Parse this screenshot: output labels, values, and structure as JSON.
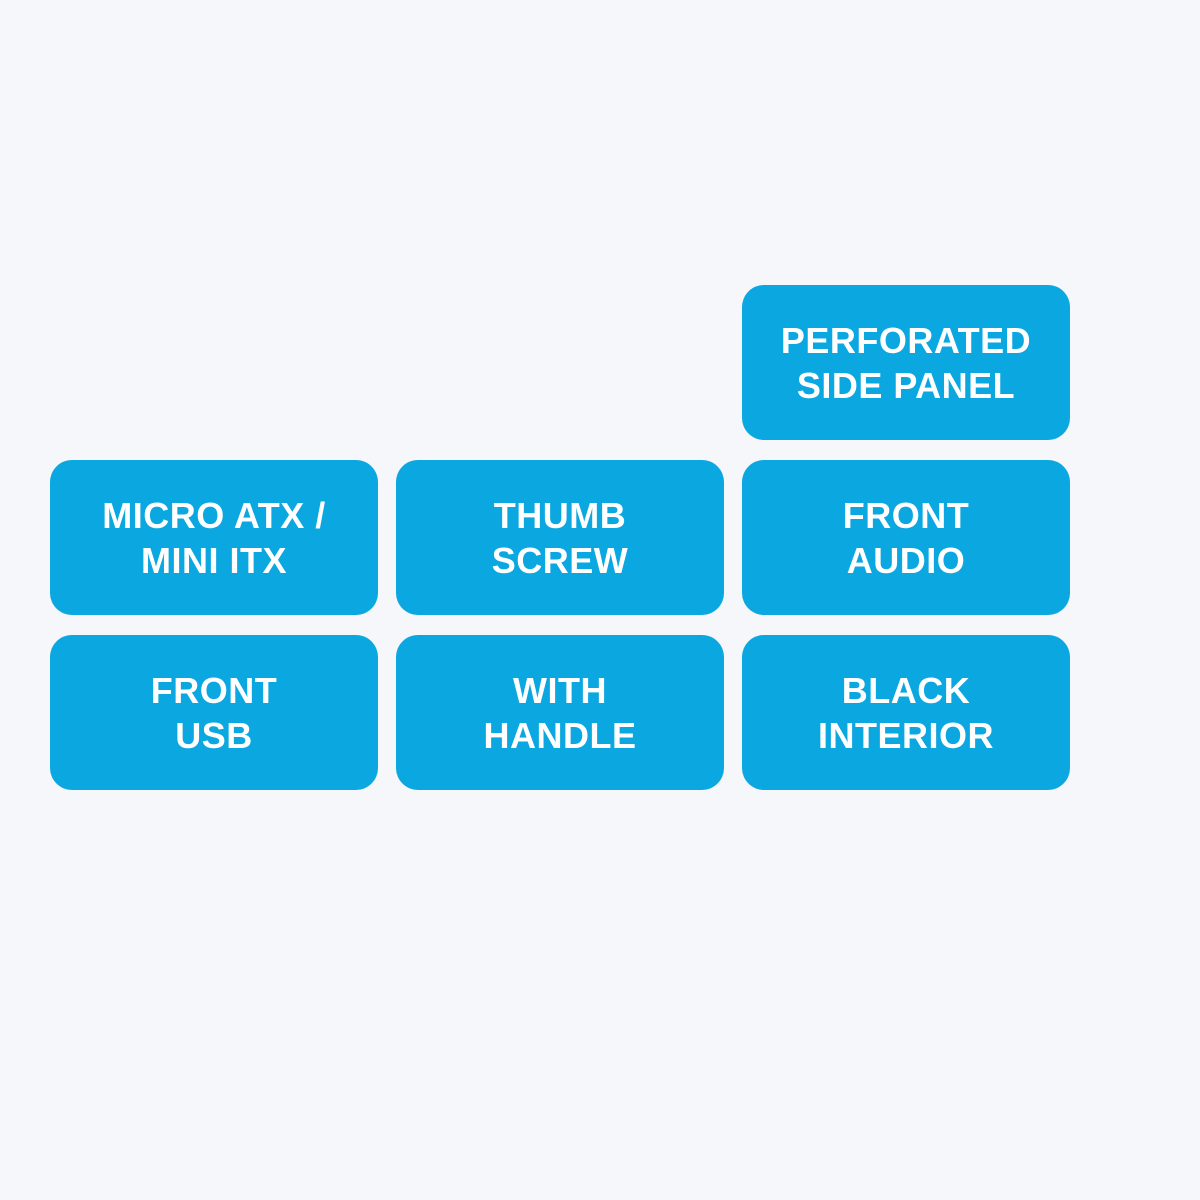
{
  "infographic": {
    "type": "infographic",
    "background_color": "#f5f7fa",
    "tag_color": "#0aa7e0",
    "text_color": "#ffffff",
    "font_size": 36,
    "font_weight": 900,
    "border_radius": 22,
    "tag_width": 328,
    "tag_height": 155,
    "gap": 18,
    "rows": [
      {
        "align": "right",
        "tags": [
          {
            "label": "PERFORATED\nSIDE PANEL"
          }
        ]
      },
      {
        "align": "left",
        "tags": [
          {
            "label": "MICRO ATX /\nMINI ITX"
          },
          {
            "label": "THUMB\nSCREW"
          },
          {
            "label": "FRONT\nAUDIO"
          }
        ]
      },
      {
        "align": "left",
        "tags": [
          {
            "label": "FRONT\nUSB"
          },
          {
            "label": "WITH\nHANDLE"
          },
          {
            "label": "BLACK\nINTERIOR"
          }
        ]
      }
    ]
  }
}
